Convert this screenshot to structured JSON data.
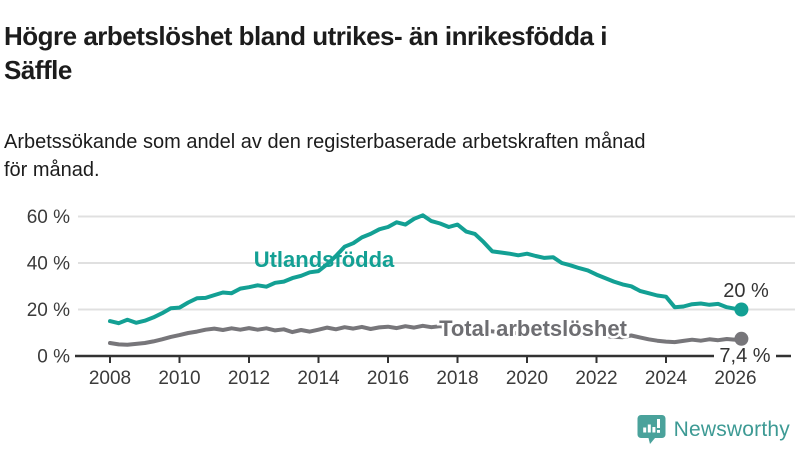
{
  "header": {
    "title": "Högre arbetslöshet bland utrikes- än inrikesfödda i\nSäffle",
    "subtitle": "Arbetssökande som andel av den registerbaserade arbetskraften månad\nför månad."
  },
  "branding": {
    "name": "Newsworthy",
    "icon": "newsworthy-bubble-chart-icon",
    "color": "#3d9a94",
    "icon_color": "#4aa29b"
  },
  "colors": {
    "foreign_born_line": "#13a094",
    "total_line": "#77767a",
    "total_label_text": "#6e6e72",
    "axis": "#323232",
    "grid": "#e0e0e0",
    "tick_text": "#3b3b3b",
    "annotation_text": "#333333",
    "background": "#ffffff"
  },
  "chart_data": {
    "type": "line",
    "title": "",
    "xlabel": "",
    "ylabel": "",
    "legend_position": "inline-labels",
    "grid": "horizontal",
    "x_axis": {
      "ticks": [
        2008,
        2010,
        2012,
        2014,
        2016,
        2018,
        2020,
        2022,
        2024,
        2026
      ],
      "tick_labels": [
        "2008",
        "2010",
        "2012",
        "2014",
        "2016",
        "2018",
        "2020",
        "2022",
        "2024",
        "2026"
      ],
      "range": [
        2007.0,
        2027.6
      ]
    },
    "y_axis": {
      "ticks": [
        0,
        20,
        40,
        60
      ],
      "tick_labels": [
        "0 %",
        "20 %",
        "40 %",
        "60 %"
      ],
      "range": [
        0,
        62
      ]
    },
    "x": [
      2008.0,
      2008.25,
      2008.5,
      2008.75,
      2009.0,
      2009.25,
      2009.5,
      2009.75,
      2010.0,
      2010.25,
      2010.5,
      2010.75,
      2011.0,
      2011.25,
      2011.5,
      2011.75,
      2012.0,
      2012.25,
      2012.5,
      2012.75,
      2013.0,
      2013.25,
      2013.5,
      2013.75,
      2014.0,
      2014.25,
      2014.5,
      2014.75,
      2015.0,
      2015.25,
      2015.5,
      2015.75,
      2016.0,
      2016.25,
      2016.5,
      2016.75,
      2017.0,
      2017.25,
      2017.5,
      2017.75,
      2018.0,
      2018.25,
      2018.5,
      2018.75,
      2019.0,
      2019.25,
      2019.5,
      2019.75,
      2020.0,
      2020.25,
      2020.5,
      2020.75,
      2021.0,
      2021.25,
      2021.5,
      2021.75,
      2022.0,
      2022.25,
      2022.5,
      2022.75,
      2023.0,
      2023.25,
      2023.5,
      2023.75,
      2024.0,
      2024.25,
      2024.5,
      2024.75,
      2025.0,
      2025.25,
      2025.5,
      2025.75,
      2026.0,
      2026.17
    ],
    "series": [
      {
        "name": "Utlandsfödda",
        "end_label": "20 %",
        "end_value": 20,
        "values": [
          15.0,
          14.1,
          15.6,
          14.3,
          15.2,
          16.6,
          18.4,
          20.5,
          20.8,
          23.0,
          24.8,
          25.0,
          26.2,
          27.3,
          27.0,
          29.0,
          29.6,
          30.4,
          29.8,
          31.5,
          32.0,
          33.5,
          34.5,
          36.0,
          36.5,
          39.5,
          43.0,
          47.0,
          48.5,
          51.0,
          52.5,
          54.5,
          55.5,
          57.5,
          56.5,
          59.0,
          60.5,
          58.0,
          57.0,
          55.5,
          56.5,
          53.5,
          52.5,
          49.0,
          45.0,
          44.5,
          44.0,
          43.3,
          44.0,
          43.0,
          42.2,
          42.5,
          40.0,
          39.0,
          37.8,
          36.8,
          35.0,
          33.5,
          32.0,
          30.8,
          30.0,
          28.0,
          27.0,
          26.0,
          25.5,
          21.0,
          21.3,
          22.3,
          22.6,
          22.0,
          22.4,
          21.0,
          20.3,
          20.0
        ]
      },
      {
        "name": "Total arbetslöshet",
        "end_label": "7,4 %",
        "end_value": 7.4,
        "values": [
          5.6,
          5.0,
          4.8,
          5.2,
          5.6,
          6.3,
          7.2,
          8.2,
          9.0,
          9.9,
          10.5,
          11.3,
          11.8,
          11.2,
          11.9,
          11.3,
          12.0,
          11.3,
          11.9,
          11.0,
          11.5,
          10.3,
          11.2,
          10.5,
          11.3,
          12.2,
          11.5,
          12.4,
          11.8,
          12.5,
          11.6,
          12.3,
          12.6,
          12.0,
          12.8,
          12.2,
          13.0,
          12.4,
          12.8,
          12.3,
          12.0,
          11.5,
          11.2,
          11.0,
          10.6,
          10.3,
          10.0,
          9.8,
          10.5,
          11.2,
          11.0,
          10.6,
          10.2,
          9.8,
          9.4,
          9.0,
          8.7,
          8.5,
          8.3,
          8.1,
          8.8,
          8.0,
          7.2,
          6.6,
          6.2,
          6.0,
          6.5,
          7.0,
          6.6,
          7.2,
          6.8,
          7.3,
          7.0,
          7.4
        ]
      }
    ]
  }
}
